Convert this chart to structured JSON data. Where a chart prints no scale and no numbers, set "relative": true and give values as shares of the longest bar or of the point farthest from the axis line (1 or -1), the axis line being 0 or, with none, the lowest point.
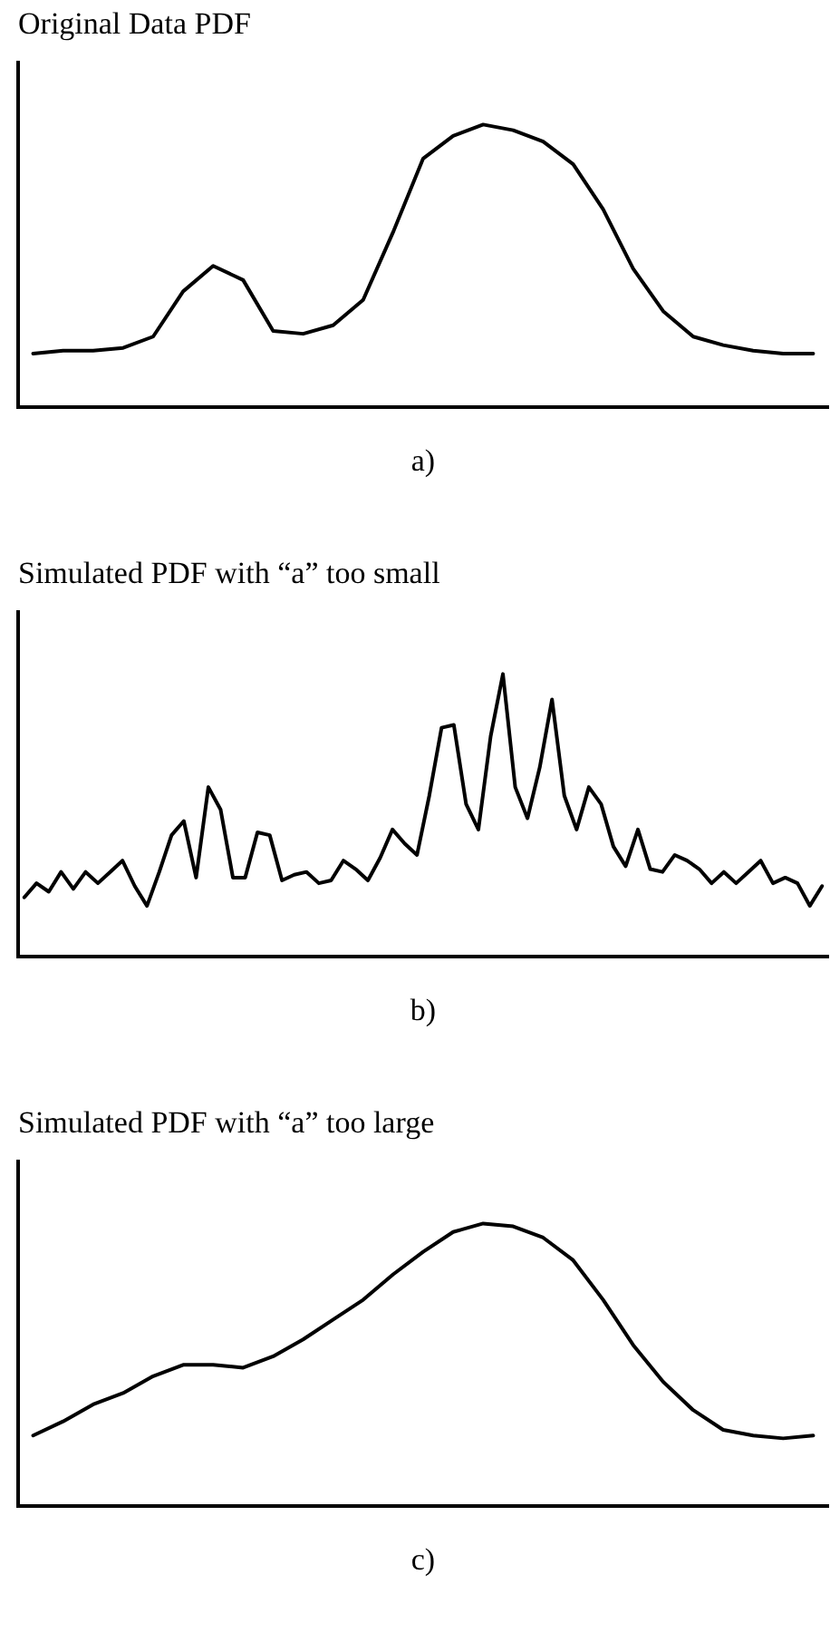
{
  "chart_data": [
    {
      "type": "line",
      "title": "Original Data PDF",
      "annotations": [
        "a)"
      ],
      "relative": true,
      "grid": false,
      "legend": false,
      "marker": "none",
      "line_style": "solid",
      "categories": [
        null,
        null,
        null,
        null,
        null,
        null,
        null,
        null,
        null,
        null,
        null,
        null,
        null,
        null,
        null,
        null,
        null,
        null,
        null,
        null,
        null,
        null,
        null,
        null,
        null,
        null,
        null
      ],
      "series": [
        {
          "color": "#000000",
          "values": [
            0.19,
            0.2,
            0.2,
            0.21,
            0.25,
            0.41,
            0.5,
            0.45,
            0.27,
            0.26,
            0.29,
            0.38,
            0.62,
            0.88,
            0.96,
            1.0,
            0.98,
            0.94,
            0.86,
            0.7,
            0.49,
            0.34,
            0.25,
            0.22,
            0.2,
            0.19,
            0.19
          ]
        }
      ]
    },
    {
      "type": "line",
      "title": "Simulated PDF with “a” too small",
      "annotations": [
        "b)"
      ],
      "relative": true,
      "grid": false,
      "legend": false,
      "marker": "none",
      "line_style": "solid",
      "categories": [
        null,
        null,
        null,
        null,
        null,
        null,
        null,
        null,
        null,
        null,
        null,
        null,
        null,
        null,
        null,
        null,
        null,
        null,
        null,
        null,
        null,
        null,
        null,
        null,
        null,
        null,
        null,
        null,
        null,
        null,
        null,
        null,
        null,
        null,
        null,
        null,
        null,
        null,
        null,
        null,
        null,
        null,
        null,
        null,
        null,
        null,
        null,
        null,
        null,
        null,
        null,
        null,
        null,
        null,
        null,
        null,
        null,
        null,
        null,
        null,
        null,
        null,
        null,
        null,
        null,
        null
      ],
      "series": [
        {
          "color": "#000000",
          "values": [
            0.21,
            0.26,
            0.23,
            0.3,
            0.24,
            0.3,
            0.26,
            0.3,
            0.34,
            0.25,
            0.18,
            0.3,
            0.43,
            0.48,
            0.28,
            0.6,
            0.52,
            0.28,
            0.28,
            0.44,
            0.43,
            0.27,
            0.29,
            0.3,
            0.26,
            0.27,
            0.34,
            0.31,
            0.27,
            0.35,
            0.45,
            0.4,
            0.36,
            0.57,
            0.81,
            0.82,
            0.54,
            0.45,
            0.78,
            1.0,
            0.6,
            0.49,
            0.67,
            0.91,
            0.57,
            0.45,
            0.6,
            0.54,
            0.39,
            0.32,
            0.45,
            0.31,
            0.3,
            0.36,
            0.34,
            0.31,
            0.26,
            0.3,
            0.26,
            0.3,
            0.34,
            0.26,
            0.28,
            0.26,
            0.18,
            0.25
          ]
        }
      ]
    },
    {
      "type": "line",
      "title": "Simulated PDF with “a” too large",
      "annotations": [
        "c)"
      ],
      "relative": true,
      "grid": false,
      "legend": false,
      "marker": "none",
      "line_style": "solid",
      "categories": [
        null,
        null,
        null,
        null,
        null,
        null,
        null,
        null,
        null,
        null,
        null,
        null,
        null,
        null,
        null,
        null,
        null,
        null,
        null,
        null,
        null,
        null,
        null,
        null,
        null,
        null,
        null
      ],
      "series": [
        {
          "color": "#000000",
          "values": [
            0.25,
            0.3,
            0.36,
            0.4,
            0.46,
            0.5,
            0.5,
            0.49,
            0.53,
            0.59,
            0.66,
            0.73,
            0.82,
            0.9,
            0.97,
            1.0,
            0.99,
            0.95,
            0.87,
            0.73,
            0.57,
            0.44,
            0.34,
            0.27,
            0.25,
            0.24,
            0.25
          ]
        }
      ]
    }
  ]
}
